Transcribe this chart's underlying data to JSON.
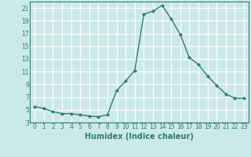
{
  "x": [
    0,
    1,
    2,
    3,
    4,
    5,
    6,
    7,
    8,
    9,
    10,
    11,
    12,
    13,
    14,
    15,
    16,
    17,
    18,
    19,
    20,
    21,
    22,
    23
  ],
  "y": [
    5.5,
    5.2,
    4.7,
    4.4,
    4.4,
    4.2,
    4.0,
    3.9,
    4.2,
    8.0,
    9.5,
    11.2,
    20.0,
    20.5,
    21.4,
    19.3,
    16.8,
    13.2,
    12.1,
    10.3,
    8.8,
    7.5,
    6.8,
    6.8
  ],
  "line_color": "#2d7d6e",
  "marker": "D",
  "marker_size": 2.0,
  "bg_color": "#cce9ea",
  "grid_color": "#ffffff",
  "xlabel": "Humidex (Indice chaleur)",
  "xlim": [
    -0.5,
    23.5
  ],
  "ylim": [
    3,
    22
  ],
  "yticks": [
    3,
    5,
    7,
    9,
    11,
    13,
    15,
    17,
    19,
    21
  ],
  "xticks": [
    0,
    1,
    2,
    3,
    4,
    5,
    6,
    7,
    8,
    9,
    10,
    11,
    12,
    13,
    14,
    15,
    16,
    17,
    18,
    19,
    20,
    21,
    22,
    23
  ],
  "tick_label_fontsize": 5.5,
  "xlabel_fontsize": 7.0,
  "line_width": 1.0
}
